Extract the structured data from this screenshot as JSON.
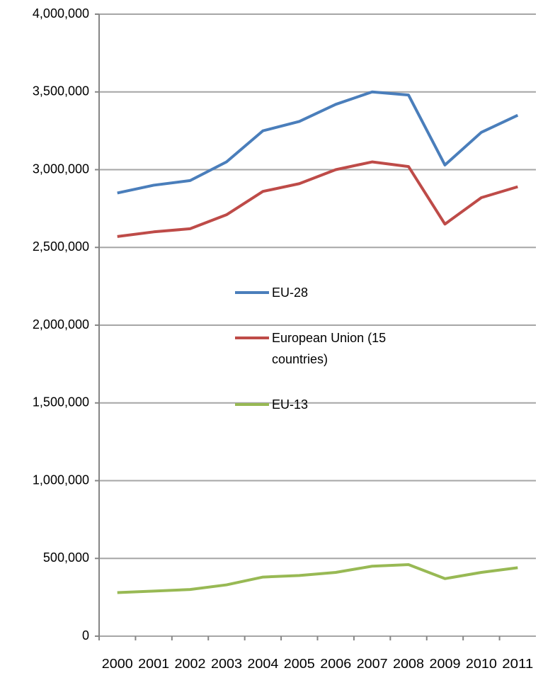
{
  "chart_data": {
    "type": "line",
    "categories": [
      "2000",
      "2001",
      "2002",
      "2003",
      "2004",
      "2005",
      "2006",
      "2007",
      "2008",
      "2009",
      "2010",
      "2011"
    ],
    "series": [
      {
        "name": "EU-28",
        "color": "#4a7ebb",
        "values": [
          2850000,
          2900000,
          2930000,
          3050000,
          3250000,
          3310000,
          3420000,
          3500000,
          3480000,
          3030000,
          3240000,
          3350000
        ]
      },
      {
        "name": "European Union (15 countries)",
        "color": "#be4b48",
        "values": [
          2570000,
          2600000,
          2620000,
          2710000,
          2860000,
          2910000,
          3000000,
          3050000,
          3020000,
          2650000,
          2820000,
          2890000
        ]
      },
      {
        "name": "EU-13",
        "color": "#98b954",
        "values": [
          280000,
          290000,
          300000,
          330000,
          380000,
          390000,
          410000,
          450000,
          460000,
          370000,
          410000,
          440000
        ]
      }
    ],
    "ylim": [
      0,
      4000000
    ],
    "yticks": [
      0,
      {
        "value": 500000,
        "label": "500,000"
      },
      {
        "value": 1000000,
        "label": "1,000,000"
      },
      {
        "value": 1500000,
        "label": "1,500,000"
      },
      {
        "value": 2000000,
        "label": "2,000,000"
      },
      {
        "value": 2500000,
        "label": "2,500,000"
      },
      {
        "value": 3000000,
        "label": "3,000,000"
      },
      {
        "value": 3500000,
        "label": "3,500,000"
      },
      {
        "value": 4000000,
        "label": "4,000,000"
      }
    ],
    "grid": true
  }
}
